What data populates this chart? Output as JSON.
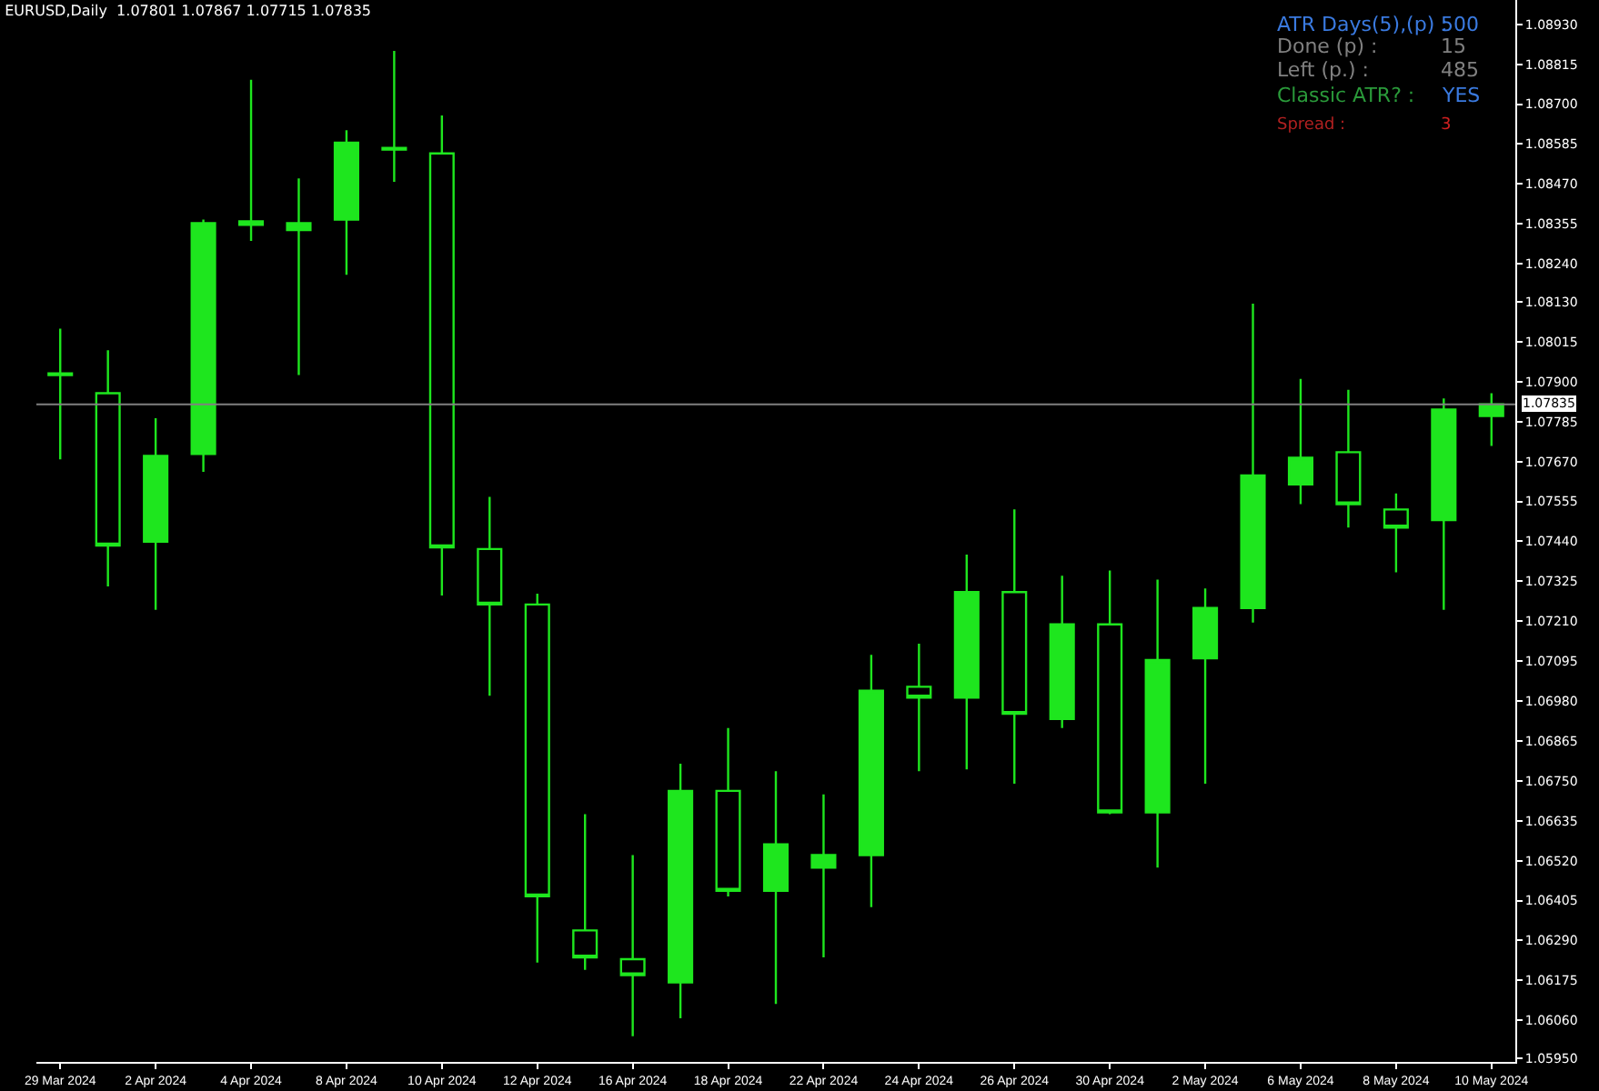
{
  "chart_data": {
    "type": "candlestick",
    "title": "EURUSD,Daily  1.07801 1.07867 1.07715 1.07835",
    "categories": [
      "29 Mar 2024",
      null,
      "2 Apr 2024",
      null,
      "4 Apr 2024",
      null,
      "8 Apr 2024",
      null,
      "10 Apr 2024",
      null,
      "12 Apr 2024",
      null,
      "16 Apr 2024",
      null,
      "18 Apr 2024",
      null,
      "22 Apr 2024",
      null,
      "24 Apr 2024",
      null,
      "26 Apr 2024",
      null,
      "30 Apr 2024",
      null,
      "2 May 2024",
      null,
      "6 May 2024",
      null,
      "8 May 2024",
      null,
      "10 May 2024"
    ],
    "color": "#1ee61e",
    "ohlc": [
      [
        1.07919,
        1.08053,
        1.07676,
        1.07924
      ],
      [
        1.07867,
        1.07991,
        1.0731,
        1.07428
      ],
      [
        1.07439,
        1.07795,
        1.07243,
        1.07686
      ],
      [
        1.07692,
        1.08367,
        1.0764,
        1.08357
      ],
      [
        1.08352,
        1.0877,
        1.08306,
        1.08362
      ],
      [
        1.08337,
        1.08486,
        1.07919,
        1.08357
      ],
      [
        1.08367,
        1.08625,
        1.08208,
        1.08589
      ],
      [
        1.08569,
        1.08853,
        1.08476,
        1.08574
      ],
      [
        1.08558,
        1.08667,
        1.07284,
        1.07423
      ],
      [
        1.07418,
        1.07568,
        1.06995,
        1.07258
      ],
      [
        1.07258,
        1.07289,
        1.06226,
        1.06417
      ],
      [
        1.06319,
        1.06654,
        1.06205,
        1.06241
      ],
      [
        1.06236,
        1.06536,
        1.06014,
        1.0619
      ],
      [
        1.06169,
        1.06799,
        1.06066,
        1.06721
      ],
      [
        1.06721,
        1.06902,
        1.06417,
        1.06433
      ],
      [
        1.06433,
        1.06778,
        1.06107,
        1.06567
      ],
      [
        1.065,
        1.06711,
        1.06241,
        1.06536
      ],
      [
        1.06536,
        1.07113,
        1.06386,
        1.0701
      ],
      [
        1.07021,
        1.07145,
        1.06778,
        1.0699
      ],
      [
        1.0699,
        1.07402,
        1.06783,
        1.07294
      ],
      [
        1.07294,
        1.07532,
        1.06742,
        1.06943
      ],
      [
        1.06928,
        1.07341,
        1.06902,
        1.07201
      ],
      [
        1.07201,
        1.07356,
        1.06654,
        1.06659
      ],
      [
        1.06659,
        1.0733,
        1.065,
        1.07098
      ],
      [
        1.07103,
        1.07304,
        1.06742,
        1.07248
      ],
      [
        1.07248,
        1.08125,
        1.07206,
        1.0763
      ],
      [
        1.07604,
        1.07908,
        1.07547,
        1.07681
      ],
      [
        1.07697,
        1.07877,
        1.0748,
        1.07547
      ],
      [
        1.07532,
        1.07578,
        1.07351,
        1.0748
      ],
      [
        1.07501,
        1.07852,
        1.07243,
        1.0782
      ],
      [
        1.07801,
        1.07867,
        1.07715,
        1.07835
      ]
    ],
    "ylim": [
      1.0594,
      1.09
    ],
    "yticks": [
      {
        "value": 1.0595,
        "label": "1.05950"
      },
      {
        "value": 1.0606,
        "label": "1.06060"
      },
      {
        "value": 1.06175,
        "label": "1.06175"
      },
      {
        "value": 1.0629,
        "label": "1.06290"
      },
      {
        "value": 1.06405,
        "label": "1.06405"
      },
      {
        "value": 1.0652,
        "label": "1.06520"
      },
      {
        "value": 1.06635,
        "label": "1.06635"
      },
      {
        "value": 1.0675,
        "label": "1.06750"
      },
      {
        "value": 1.06865,
        "label": "1.06865"
      },
      {
        "value": 1.0698,
        "label": "1.06980"
      },
      {
        "value": 1.07095,
        "label": "1.07095"
      },
      {
        "value": 1.0721,
        "label": "1.07210"
      },
      {
        "value": 1.07325,
        "label": "1.07325"
      },
      {
        "value": 1.0744,
        "label": "1.07440"
      },
      {
        "value": 1.07555,
        "label": "1.07555"
      },
      {
        "value": 1.0767,
        "label": "1.07670"
      },
      {
        "value": 1.07785,
        "label": "1.07785"
      },
      {
        "value": 1.079,
        "label": "1.07900"
      },
      {
        "value": 1.08015,
        "label": "1.08015"
      },
      {
        "value": 1.0813,
        "label": "1.08130"
      },
      {
        "value": 1.0824,
        "label": "1.08240"
      },
      {
        "value": 1.08355,
        "label": "1.08355"
      },
      {
        "value": 1.0847,
        "label": "1.08470"
      },
      {
        "value": 1.08585,
        "label": "1.08585"
      },
      {
        "value": 1.087,
        "label": "1.08700"
      },
      {
        "value": 1.08815,
        "label": "1.08815"
      },
      {
        "value": 1.0893,
        "label": "1.08930"
      }
    ],
    "ref_lines": [
      {
        "axis": "y",
        "value": 1.07835,
        "label": "1.07835",
        "color": "#808080"
      }
    ],
    "annotations": [
      "ATR Days(5),(p) :",
      "500",
      "Done (p) :",
      "15",
      "Left (p.) :",
      "485",
      "Classic ATR? :",
      "YES",
      "Spread :",
      "3"
    ],
    "grid": false
  }
}
